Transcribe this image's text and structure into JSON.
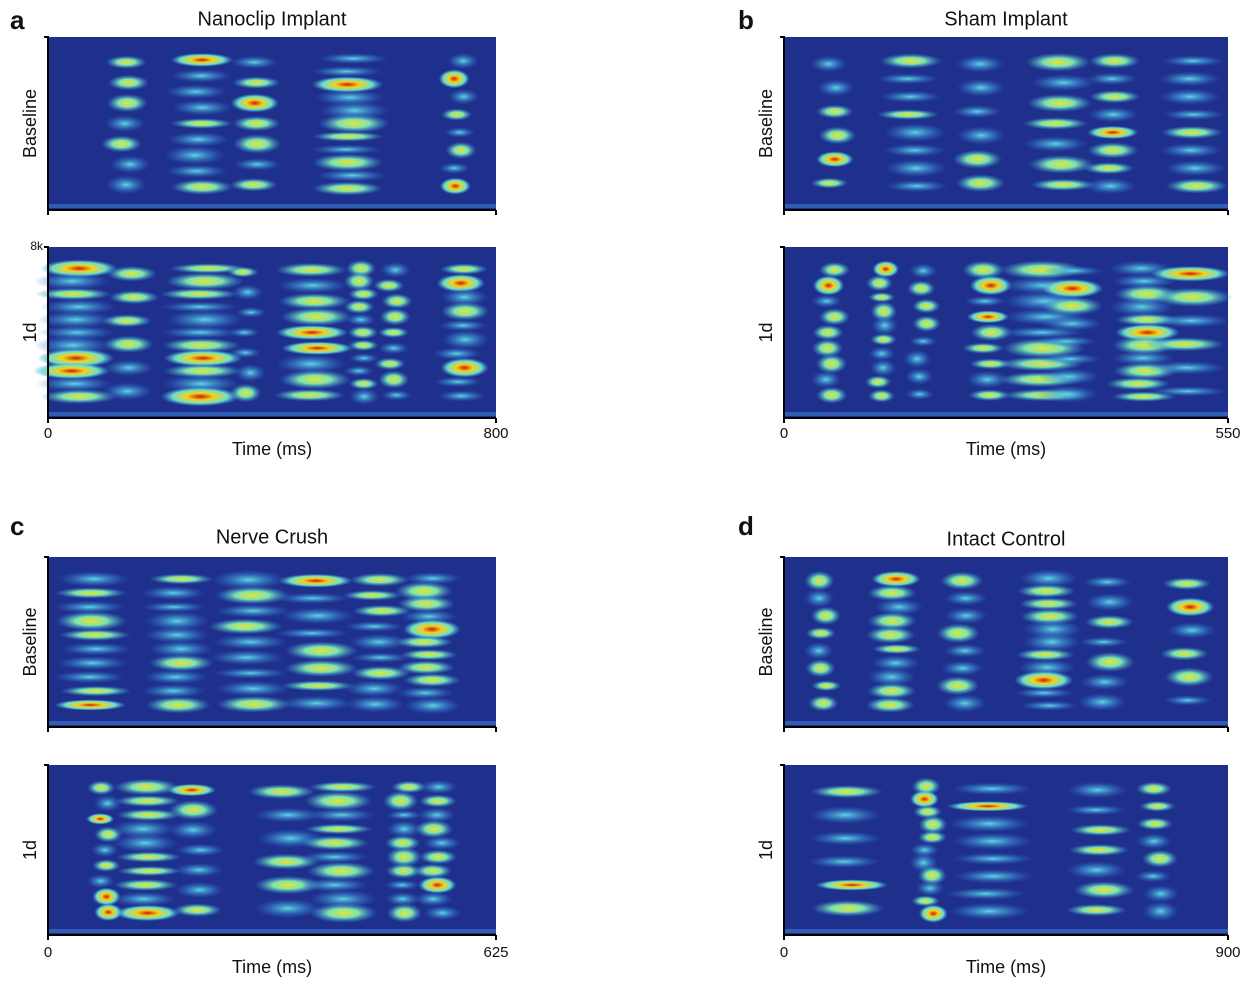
{
  "panels": [
    {
      "letter": "a",
      "title": "Nanoclip Implant",
      "rows": [
        "Baseline",
        "1d"
      ],
      "y_tick": "8k",
      "x_label": "Time (ms)",
      "x_ticks": [
        "0",
        "800"
      ]
    },
    {
      "letter": "b",
      "title": "Sham Implant",
      "rows": [
        "Baseline",
        "1d"
      ],
      "x_label": "Time (ms)",
      "x_ticks": [
        "0",
        "550"
      ]
    },
    {
      "letter": "c",
      "title": "Nerve Crush",
      "rows": [
        "Baseline",
        "1d"
      ],
      "x_label": "Time (ms)",
      "x_ticks": [
        "0",
        "625"
      ]
    },
    {
      "letter": "d",
      "title": "Intact Control",
      "rows": [
        "Baseline",
        "1d"
      ],
      "x_label": "Time (ms)",
      "x_ticks": [
        "0",
        "900"
      ]
    }
  ]
}
